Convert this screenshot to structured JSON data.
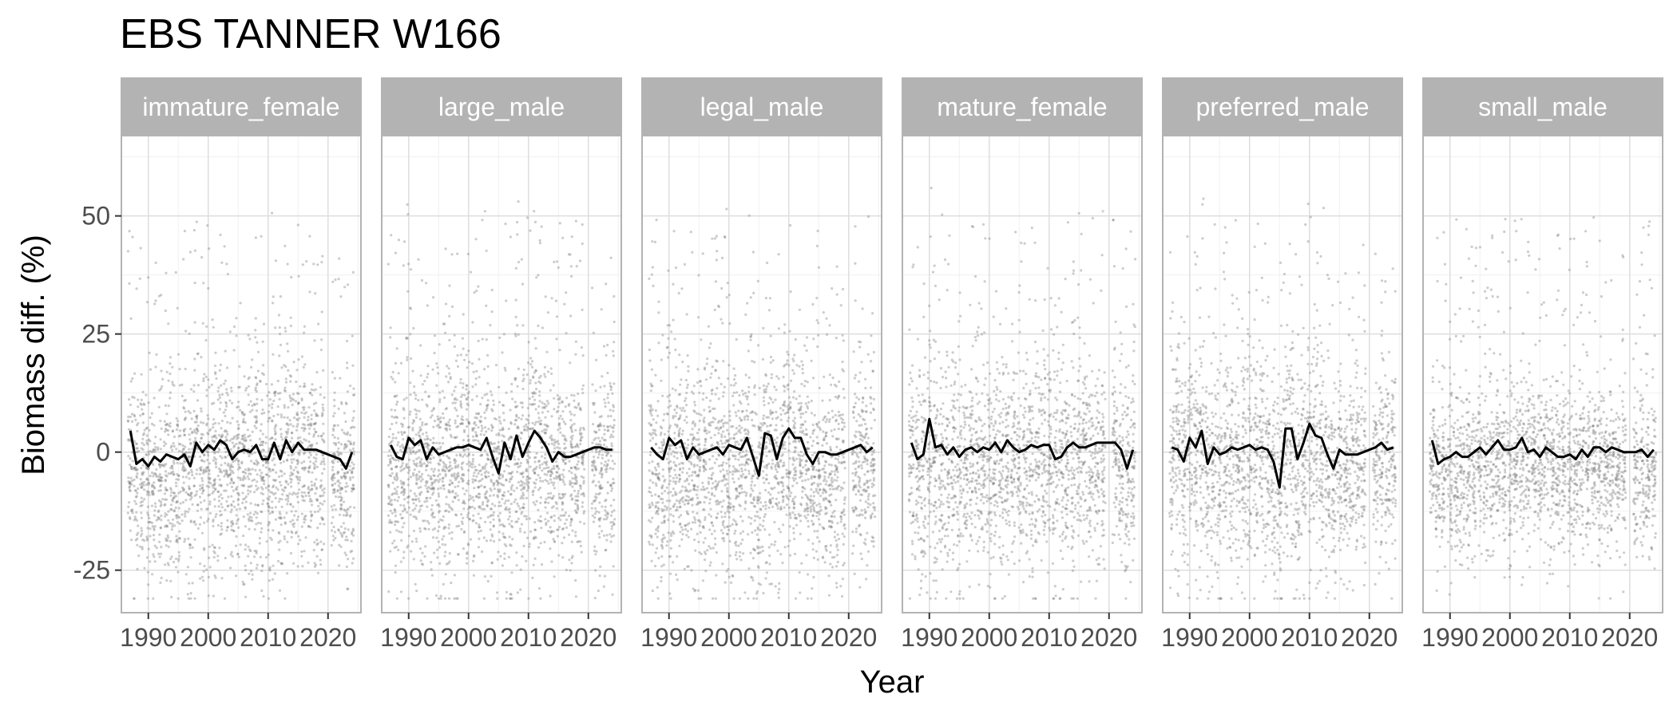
{
  "chart_data": {
    "type": "scatter",
    "title": "EBS TANNER W166",
    "xlabel": "Year",
    "ylabel": "Biomass diff. (%)",
    "xlim": [
      1985.5,
      2025.5
    ],
    "ylim": [
      -34,
      67
    ],
    "x_ticks": [
      1990,
      2000,
      2010,
      2020
    ],
    "x_tick_labels": [
      "1990",
      "2000",
      "2010",
      "2020"
    ],
    "y_ticks": [
      -25,
      0,
      25,
      50
    ],
    "y_tick_labels": [
      "-25",
      "0",
      "25",
      "50"
    ],
    "grid": true,
    "point_color": "#808080",
    "line_color": "#000000",
    "strip_color": "#b3b3b3",
    "years": [
      1987,
      1988,
      1989,
      1990,
      1991,
      1992,
      1993,
      1994,
      1995,
      1996,
      1997,
      1998,
      1999,
      2000,
      2001,
      2002,
      2003,
      2004,
      2005,
      2006,
      2007,
      2008,
      2009,
      2010,
      2011,
      2012,
      2013,
      2014,
      2015,
      2016,
      2017,
      2018,
      2019,
      2021,
      2022,
      2023,
      2024
    ],
    "panels": [
      {
        "label": "immature_female",
        "means": [
          4.5,
          -2.5,
          -1.5,
          -3,
          -1,
          -2,
          -0.5,
          -1,
          -1.5,
          -0.5,
          -3,
          2,
          0,
          1.5,
          0.5,
          2.5,
          1.5,
          -1.5,
          0,
          0.5,
          0,
          1.5,
          -1.5,
          -1.5,
          2,
          -1.5,
          2.5,
          0,
          2,
          0.5,
          0.5,
          0.5,
          0,
          -1,
          -1.5,
          -3.5,
          0
        ],
        "spread": [
          10,
          10,
          11,
          10,
          11,
          11,
          12,
          11,
          12,
          11,
          11,
          12,
          11,
          12,
          11,
          12,
          11,
          10,
          11,
          12,
          12,
          13,
          12,
          11,
          11,
          12,
          11,
          12,
          11,
          10,
          10,
          11,
          10,
          9,
          10,
          10,
          11
        ]
      },
      {
        "label": "large_male",
        "means": [
          1.5,
          -1,
          -1.5,
          3,
          1.5,
          2.5,
          -1.5,
          1,
          -0.5,
          0,
          0.5,
          1,
          1,
          1.5,
          1,
          0.5,
          3,
          -1,
          -4.5,
          2,
          -1.5,
          3.5,
          -1,
          2,
          4.5,
          3,
          1,
          -2,
          0,
          -1,
          -1,
          -0.5,
          0,
          1,
          1,
          0.5,
          0.5
        ],
        "spread": [
          9,
          10,
          10,
          11,
          10,
          11,
          11,
          10,
          12,
          11,
          10,
          11,
          11,
          12,
          11,
          10,
          11,
          10,
          11,
          12,
          12,
          12,
          11,
          11,
          12,
          11,
          10,
          10,
          10,
          9,
          9,
          10,
          9,
          9,
          9,
          10,
          10
        ]
      },
      {
        "label": "legal_male",
        "means": [
          1,
          -0.5,
          -1.5,
          3,
          1.5,
          2.5,
          -1.5,
          1,
          -0.5,
          0,
          0.5,
          1,
          -0.5,
          1.5,
          1,
          0.5,
          3,
          -1,
          -5,
          4,
          3.5,
          -1.5,
          3,
          5,
          3,
          3,
          -0.5,
          -2.5,
          0,
          0,
          -0.5,
          -0.5,
          0,
          1,
          1.5,
          0,
          1
        ],
        "spread": [
          10,
          11,
          11,
          12,
          11,
          12,
          12,
          11,
          13,
          12,
          11,
          12,
          11,
          12,
          12,
          11,
          12,
          11,
          12,
          13,
          12,
          12,
          11,
          12,
          13,
          12,
          11,
          10,
          10,
          10,
          10,
          11,
          10,
          9,
          10,
          10,
          10
        ]
      },
      {
        "label": "mature_female",
        "means": [
          2,
          -1.5,
          -0.5,
          7,
          1,
          1.5,
          -0.5,
          1,
          -1,
          0.5,
          1,
          0,
          1,
          0.5,
          2,
          0,
          2.5,
          1,
          0,
          0.5,
          1.5,
          1,
          1.5,
          1.5,
          -1.5,
          -1,
          1,
          2,
          1,
          1,
          1.5,
          2,
          2,
          2,
          0.5,
          -3.5,
          0.5
        ],
        "spread": [
          10,
          11,
          11,
          12,
          12,
          11,
          12,
          11,
          12,
          11,
          11,
          11,
          11,
          12,
          11,
          11,
          11,
          10,
          11,
          11,
          12,
          12,
          11,
          11,
          12,
          12,
          11,
          11,
          11,
          10,
          10,
          11,
          10,
          10,
          10,
          11,
          11
        ]
      },
      {
        "label": "preferred_male",
        "means": [
          1,
          0.5,
          -2,
          3,
          1,
          4.5,
          -2.5,
          1,
          -0.5,
          0,
          1,
          0.5,
          1,
          1.5,
          0.5,
          1,
          0.5,
          -2,
          -7.5,
          5,
          5,
          -1.5,
          2,
          6,
          3.5,
          3,
          -0.5,
          -3.5,
          0.5,
          -0.5,
          -0.5,
          -0.5,
          0,
          1,
          2,
          0.5,
          1
        ],
        "spread": [
          10,
          11,
          11,
          12,
          11,
          12,
          12,
          11,
          13,
          12,
          11,
          12,
          11,
          12,
          12,
          11,
          12,
          11,
          12,
          13,
          13,
          12,
          11,
          12,
          13,
          12,
          11,
          10,
          10,
          10,
          10,
          11,
          10,
          9,
          10,
          10,
          10
        ]
      },
      {
        "label": "small_male",
        "means": [
          2.5,
          -2.5,
          -1.5,
          -1,
          0,
          -1,
          -1,
          0,
          1,
          -0.5,
          1,
          2.5,
          0.5,
          0.5,
          1,
          3,
          0,
          0.5,
          -1,
          1,
          0,
          -1,
          -1,
          -0.5,
          -1.5,
          0.5,
          -1,
          1,
          1,
          0,
          1,
          0.5,
          0,
          0,
          0.5,
          -1,
          0.5
        ],
        "spread": [
          8,
          8,
          9,
          9,
          9,
          9,
          9,
          9,
          10,
          9,
          9,
          10,
          9,
          10,
          9,
          9,
          9,
          8,
          9,
          9,
          9,
          9,
          9,
          9,
          9,
          9,
          9,
          9,
          9,
          8,
          8,
          8,
          8,
          8,
          8,
          9,
          9
        ]
      }
    ]
  }
}
